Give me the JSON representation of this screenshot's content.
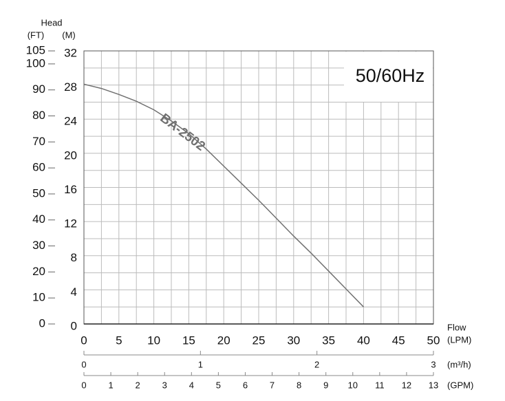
{
  "chart_data": {
    "type": "line",
    "annotation": "50/60Hz",
    "y_label": "Head",
    "y_unit": "(M)",
    "y2_unit": "(FT)",
    "x_label": "Flow",
    "x_unit": "(LPM)",
    "x2_unit": "(m³/h)",
    "x3_unit": "(GPM)",
    "x": [
      0,
      2.5,
      5,
      7.5,
      10,
      12.5,
      15,
      17.5,
      20,
      22.5,
      25,
      27.5,
      30,
      32.5,
      35,
      37.5,
      40
    ],
    "series": [
      {
        "name": "BA-2502",
        "color": "#707070",
        "values": [
          28.1,
          27.6,
          26.9,
          26.1,
          25.1,
          23.8,
          22.3,
          20.5,
          18.5,
          16.5,
          14.5,
          12.4,
          10.3,
          8.3,
          6.2,
          4.1,
          2.0
        ]
      }
    ],
    "xlim": [
      0,
      50
    ],
    "xticks": [
      0,
      5,
      10,
      15,
      20,
      25,
      30,
      35,
      40,
      45,
      50
    ],
    "ylim": [
      0,
      32
    ],
    "yticks": [
      0,
      4,
      8,
      12,
      16,
      20,
      24,
      28,
      32
    ],
    "y2lim": [
      0,
      105
    ],
    "y2ticks": [
      0,
      10,
      20,
      30,
      40,
      50,
      60,
      70,
      80,
      90,
      100,
      105
    ],
    "x2lim": [
      0,
      3
    ],
    "x2ticks": [
      0,
      1,
      2,
      3
    ],
    "x3lim": [
      0,
      13
    ],
    "x3ticks": [
      0,
      1,
      2,
      3,
      4,
      5,
      6,
      7,
      8,
      9,
      10,
      11,
      12,
      13
    ],
    "grid": true
  }
}
